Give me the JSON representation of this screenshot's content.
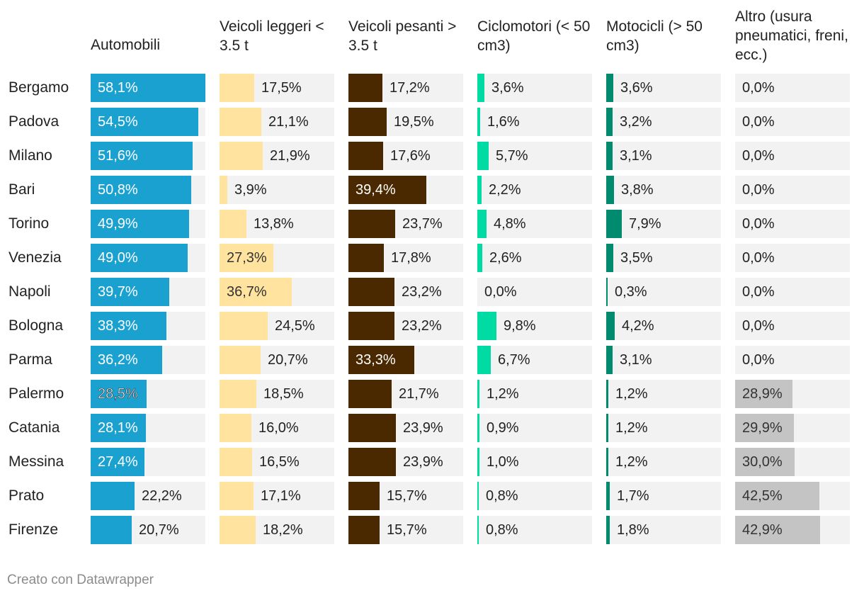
{
  "chart_data": {
    "type": "table",
    "columns": [
      {
        "key": "auto",
        "label": "Automobili",
        "color": "#1aa1cf"
      },
      {
        "key": "leggeri",
        "label": "Veicoli leggeri < 3.5 t",
        "color": "#ffe39e"
      },
      {
        "key": "pesanti",
        "label": "Veicoli pesanti > 3.5 t",
        "color": "#4a2900"
      },
      {
        "key": "ciclomotori",
        "label": "Ciclomotori (< 50 cm3)",
        "color": "#00dba4"
      },
      {
        "key": "motocicli",
        "label": "Motocicli (> 50 cm3)",
        "color": "#008a6e"
      },
      {
        "key": "altro",
        "label": "Altro (usura pneumatici, freni, ecc.)",
        "color": "#c4c4c4"
      }
    ],
    "rows": [
      {
        "city": "Bergamo",
        "labels": [
          "58,1%",
          "17,5%",
          "17,2%",
          "3,6%",
          "3,6%",
          "0,0%"
        ],
        "values": [
          58.1,
          17.5,
          17.2,
          3.6,
          3.6,
          0.0
        ]
      },
      {
        "city": "Padova",
        "labels": [
          "54,5%",
          "21,1%",
          "19,5%",
          "1,6%",
          "3,2%",
          "0,0%"
        ],
        "values": [
          54.5,
          21.1,
          19.5,
          1.6,
          3.2,
          0.0
        ]
      },
      {
        "city": "Milano",
        "labels": [
          "51,6%",
          "21,9%",
          "17,6%",
          "5,7%",
          "3,1%",
          "0,0%"
        ],
        "values": [
          51.6,
          21.9,
          17.6,
          5.7,
          3.1,
          0.0
        ]
      },
      {
        "city": "Bari",
        "labels": [
          "50,8%",
          "3,9%",
          "39,4%",
          "2,2%",
          "3,8%",
          "0,0%"
        ],
        "values": [
          50.8,
          3.9,
          39.4,
          2.2,
          3.8,
          0.0
        ]
      },
      {
        "city": "Torino",
        "labels": [
          "49,9%",
          "13,8%",
          "23,7%",
          "4,8%",
          "7,9%",
          "0,0%"
        ],
        "values": [
          49.9,
          13.8,
          23.7,
          4.8,
          7.9,
          0.0
        ]
      },
      {
        "city": "Venezia",
        "labels": [
          "49,0%",
          "27,3%",
          "17,8%",
          "2,6%",
          "3,5%",
          "0,0%"
        ],
        "values": [
          49.0,
          27.3,
          17.8,
          2.6,
          3.5,
          0.0
        ]
      },
      {
        "city": "Napoli",
        "labels": [
          "39,7%",
          "36,7%",
          "23,2%",
          "0,0%",
          "0,3%",
          "0,0%"
        ],
        "values": [
          39.7,
          36.7,
          23.2,
          0.0,
          0.3,
          0.0
        ]
      },
      {
        "city": "Bologna",
        "labels": [
          "38,3%",
          "24,5%",
          "23,2%",
          "9,8%",
          "4,2%",
          "0,0%"
        ],
        "values": [
          38.3,
          24.5,
          23.2,
          9.8,
          4.2,
          0.0
        ]
      },
      {
        "city": "Parma",
        "labels": [
          "36,2%",
          "20,7%",
          "33,3%",
          "6,7%",
          "3,1%",
          "0,0%"
        ],
        "values": [
          36.2,
          20.7,
          33.3,
          6.7,
          3.1,
          0.0
        ]
      },
      {
        "city": "Palermo",
        "labels": [
          "28,5%",
          "18,5%",
          "21,7%",
          "1,2%",
          "1,2%",
          "28,9%"
        ],
        "values": [
          28.5,
          18.5,
          21.7,
          1.2,
          1.2,
          28.9
        ]
      },
      {
        "city": "Catania",
        "labels": [
          "28,1%",
          "16,0%",
          "23,9%",
          "0,9%",
          "1,2%",
          "29,9%"
        ],
        "values": [
          28.1,
          16.0,
          23.9,
          0.9,
          1.2,
          29.9
        ]
      },
      {
        "city": "Messina",
        "labels": [
          "27,4%",
          "16,5%",
          "23,9%",
          "1,0%",
          "1,2%",
          "30,0%"
        ],
        "values": [
          27.4,
          16.5,
          23.9,
          1.0,
          1.2,
          30.0
        ]
      },
      {
        "city": "Prato",
        "labels": [
          "22,2%",
          "17,1%",
          "15,7%",
          "0,8%",
          "1,7%",
          "42,5%"
        ],
        "values": [
          22.2,
          17.1,
          15.7,
          0.8,
          1.7,
          42.5
        ]
      },
      {
        "city": "Firenze",
        "labels": [
          "20,7%",
          "18,2%",
          "15,7%",
          "0,8%",
          "1,8%",
          "42,9%"
        ],
        "values": [
          20.7,
          18.2,
          15.7,
          0.8,
          1.8,
          42.9
        ]
      }
    ],
    "scale_max": 58.1
  },
  "footer": "Creato con Datawrapper"
}
